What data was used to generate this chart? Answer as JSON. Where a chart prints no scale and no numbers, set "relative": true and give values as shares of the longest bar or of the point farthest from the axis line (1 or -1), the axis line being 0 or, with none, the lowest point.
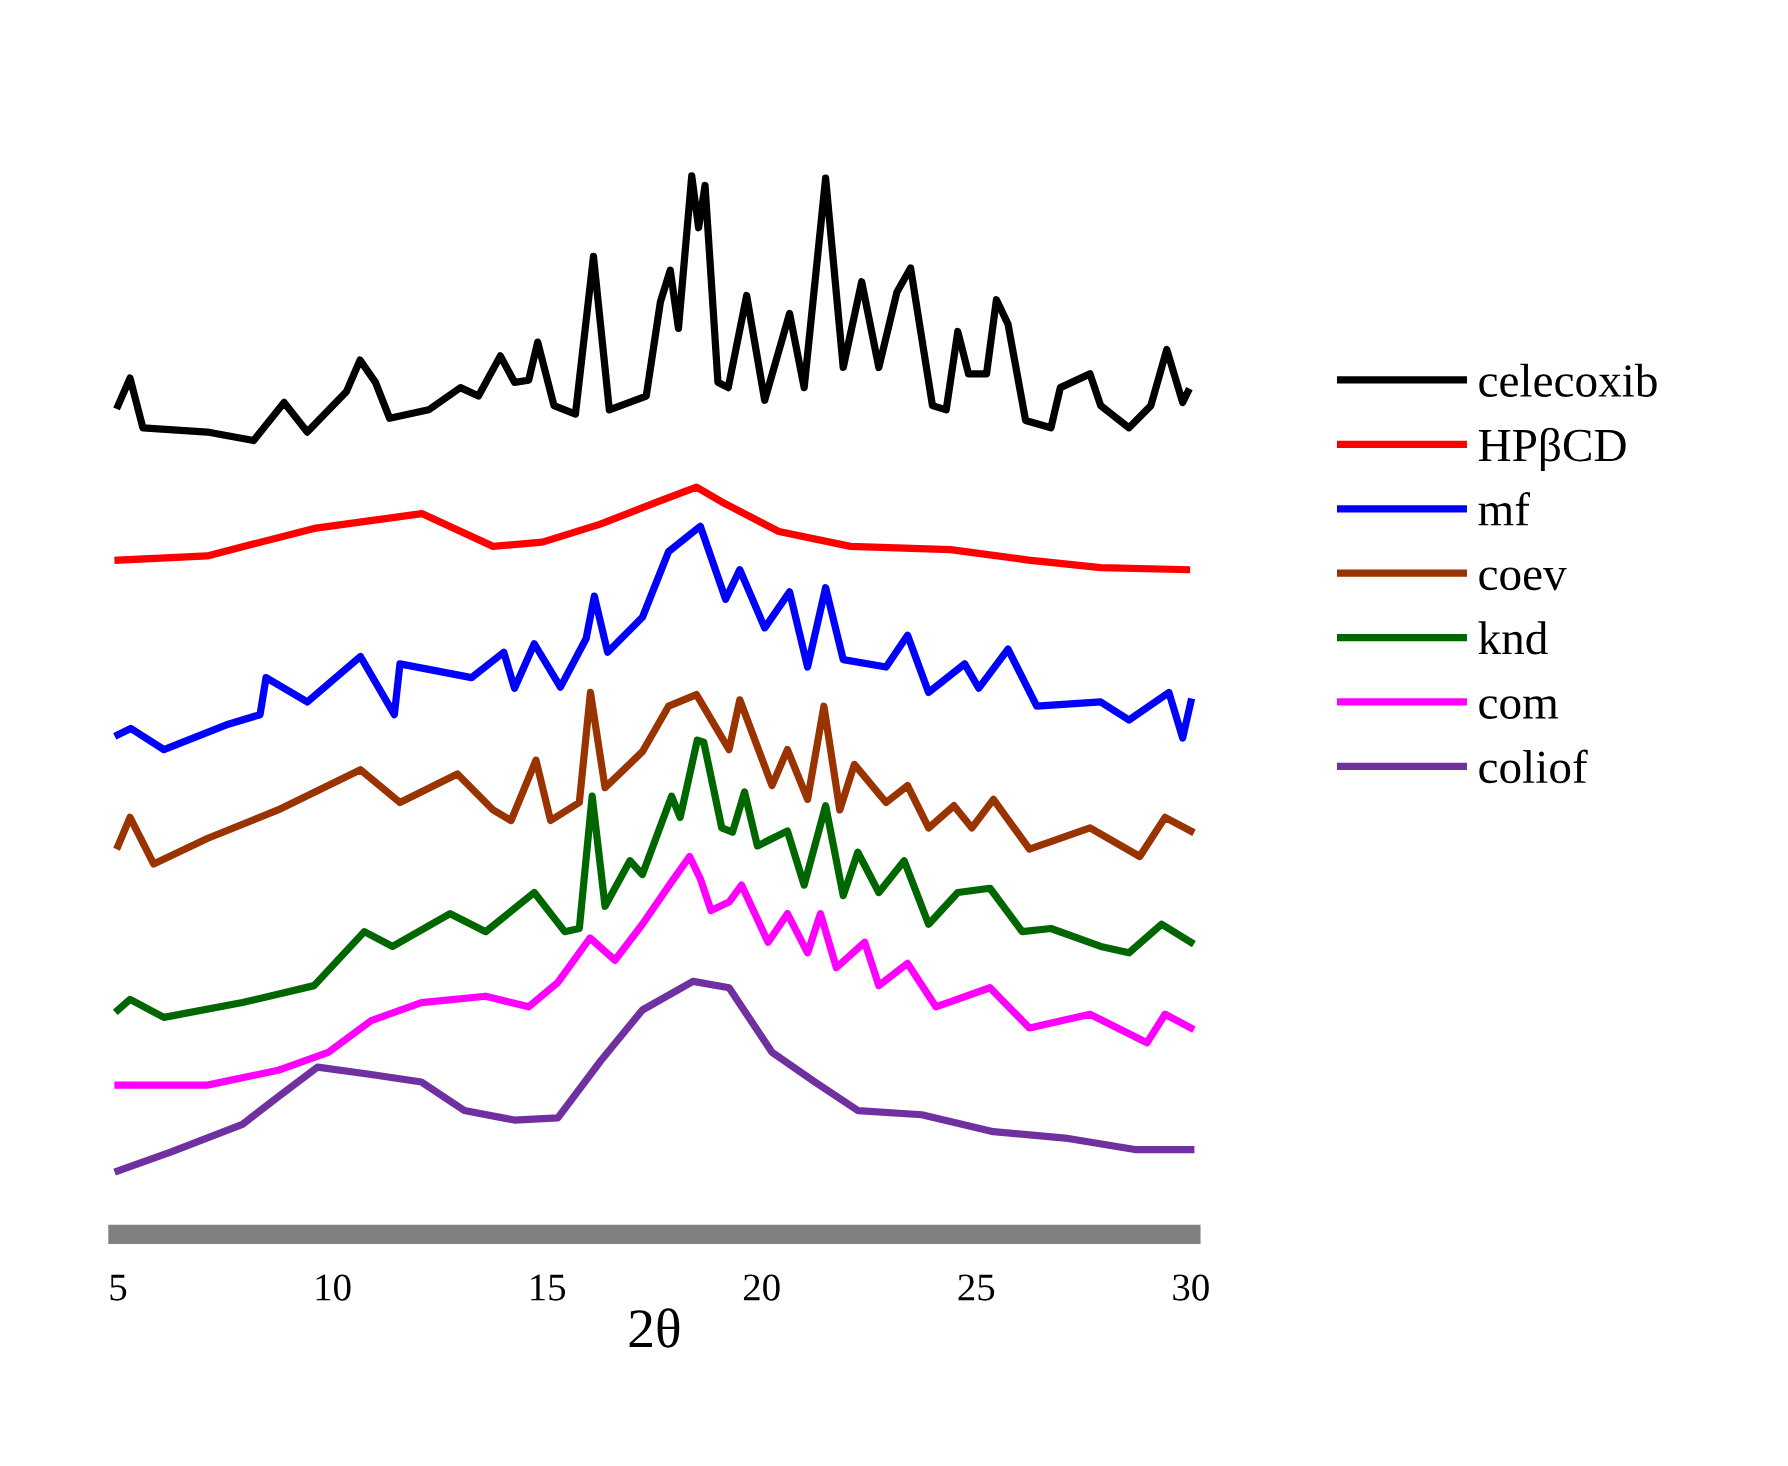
{
  "chart_data": {
    "type": "line",
    "relative": true,
    "xlabel": "2θ",
    "xlim": [
      5,
      30
    ],
    "xticks": [
      5,
      10,
      15,
      20,
      25,
      30
    ],
    "legend": "right",
    "grid": false,
    "marker": "none",
    "line_style": "solid",
    "series": [
      {
        "name": "celecoxib",
        "color": "#000000",
        "x": [
          5.0,
          5.28,
          5.58,
          7.08,
          8.16,
          8.87,
          9.41,
          10.32,
          10.64,
          11.0,
          11.33,
          12.24,
          12.98,
          13.4,
          13.91,
          14.24,
          14.57,
          14.78,
          15.16,
          15.66,
          16.08,
          16.45,
          17.31,
          17.64,
          17.87,
          18.06,
          18.37,
          18.53,
          18.68,
          18.98,
          19.22,
          19.65,
          20.07,
          20.65,
          20.99,
          21.49,
          21.9,
          22.33,
          22.73,
          23.15,
          23.47,
          23.98,
          24.3,
          24.57,
          24.82,
          25.24,
          25.47,
          25.74,
          26.15,
          26.74,
          26.96,
          27.65,
          27.9,
          28.56,
          29.07,
          29.44,
          29.81,
          29.93
        ],
        "values": [
          0.783,
          0.809,
          0.762,
          0.758,
          0.75,
          0.786,
          0.758,
          0.796,
          0.826,
          0.805,
          0.771,
          0.779,
          0.8,
          0.792,
          0.83,
          0.805,
          0.807,
          0.843,
          0.783,
          0.775,
          0.924,
          0.779,
          0.792,
          0.881,
          0.911,
          0.856,
          1.0,
          0.951,
          0.991,
          0.805,
          0.8,
          0.887,
          0.788,
          0.87,
          0.8,
          0.998,
          0.819,
          0.9,
          0.819,
          0.89,
          0.913,
          0.783,
          0.779,
          0.853,
          0.813,
          0.813,
          0.883,
          0.86,
          0.769,
          0.762,
          0.8,
          0.813,
          0.783,
          0.762,
          0.783,
          0.836,
          0.786,
          0.796
        ]
      },
      {
        "name": "HPβCD",
        "color": "#ff0000",
        "x": [
          5.0,
          7.08,
          9.57,
          12.08,
          13.74,
          14.89,
          16.24,
          17.57,
          18.48,
          19.07,
          20.4,
          22.07,
          24.4,
          26.22,
          27.9,
          29.9
        ],
        "values": [
          0.637,
          0.641,
          0.667,
          0.681,
          0.65,
          0.654,
          0.671,
          0.692,
          0.706,
          0.692,
          0.664,
          0.65,
          0.647,
          0.637,
          0.63,
          0.628
        ]
      },
      {
        "name": "mf",
        "color": "#0000ff",
        "x": [
          5.0,
          5.3,
          6.07,
          7.57,
          8.31,
          8.45,
          9.41,
          10.65,
          11.44,
          11.57,
          13.24,
          13.99,
          14.24,
          14.7,
          15.31,
          15.91,
          16.1,
          16.41,
          17.22,
          17.83,
          18.57,
          19.16,
          19.49,
          20.07,
          20.65,
          21.07,
          21.49,
          21.9,
          22.9,
          23.4,
          23.89,
          24.73,
          25.06,
          25.74,
          26.41,
          27.9,
          28.56,
          29.49,
          29.81,
          30.0
        ],
        "values": [
          0.472,
          0.478,
          0.458,
          0.482,
          0.491,
          0.526,
          0.503,
          0.546,
          0.491,
          0.539,
          0.526,
          0.55,
          0.516,
          0.558,
          0.517,
          0.563,
          0.603,
          0.55,
          0.583,
          0.645,
          0.669,
          0.6,
          0.628,
          0.573,
          0.607,
          0.536,
          0.611,
          0.543,
          0.536,
          0.566,
          0.512,
          0.539,
          0.516,
          0.553,
          0.499,
          0.503,
          0.486,
          0.512,
          0.469,
          0.503
        ]
      },
      {
        "name": "coev",
        "color": "#993300",
        "x": [
          5.0,
          5.28,
          5.83,
          7.08,
          8.73,
          10.65,
          11.57,
          12.91,
          13.74,
          14.16,
          14.74,
          15.08,
          15.75,
          16.01,
          16.35,
          17.22,
          17.83,
          18.48,
          19.24,
          19.49,
          20.24,
          20.6,
          21.07,
          21.45,
          21.82,
          22.16,
          22.9,
          23.4,
          23.89,
          24.48,
          24.9,
          25.4,
          26.24,
          27.65,
          28.81,
          29.4,
          30.0
        ],
        "values": [
          0.367,
          0.394,
          0.35,
          0.374,
          0.401,
          0.439,
          0.408,
          0.435,
          0.401,
          0.391,
          0.448,
          0.391,
          0.408,
          0.512,
          0.422,
          0.456,
          0.499,
          0.51,
          0.458,
          0.505,
          0.424,
          0.458,
          0.411,
          0.499,
          0.401,
          0.444,
          0.408,
          0.424,
          0.384,
          0.405,
          0.384,
          0.411,
          0.364,
          0.384,
          0.357,
          0.394,
          0.381
        ]
      },
      {
        "name": "knd",
        "color": "#006600",
        "x": [
          5.0,
          5.28,
          6.07,
          7.9,
          9.57,
          10.74,
          11.4,
          12.74,
          13.57,
          14.7,
          15.41,
          15.75,
          16.05,
          16.35,
          16.93,
          17.22,
          17.9,
          18.1,
          18.5,
          18.65,
          19.07,
          19.32,
          19.6,
          19.9,
          20.6,
          20.99,
          21.49,
          21.9,
          22.24,
          22.73,
          23.32,
          23.89,
          24.57,
          25.32,
          26.07,
          26.74,
          27.9,
          28.56,
          29.32,
          30.0
        ],
        "values": [
          0.212,
          0.222,
          0.205,
          0.219,
          0.235,
          0.286,
          0.272,
          0.303,
          0.286,
          0.323,
          0.286,
          0.289,
          0.414,
          0.31,
          0.353,
          0.34,
          0.414,
          0.394,
          0.467,
          0.465,
          0.384,
          0.38,
          0.418,
          0.367,
          0.381,
          0.33,
          0.405,
          0.32,
          0.361,
          0.323,
          0.353,
          0.293,
          0.323,
          0.327,
          0.286,
          0.289,
          0.272,
          0.266,
          0.293,
          0.276
        ]
      },
      {
        "name": "com",
        "color": "#ff00ff",
        "x": [
          5.0,
          7.08,
          8.73,
          9.9,
          10.9,
          12.07,
          13.57,
          14.57,
          15.25,
          16.0,
          16.58,
          17.22,
          17.9,
          18.32,
          18.57,
          18.82,
          19.24,
          19.53,
          20.15,
          20.6,
          21.07,
          21.37,
          21.74,
          22.4,
          22.73,
          23.4,
          24.06,
          25.32,
          26.24,
          27.65,
          28.98,
          29.4,
          30.0
        ],
        "values": [
          0.141,
          0.141,
          0.155,
          0.172,
          0.202,
          0.219,
          0.225,
          0.215,
          0.238,
          0.28,
          0.259,
          0.293,
          0.333,
          0.357,
          0.336,
          0.306,
          0.314,
          0.33,
          0.276,
          0.303,
          0.266,
          0.303,
          0.252,
          0.276,
          0.235,
          0.256,
          0.215,
          0.233,
          0.195,
          0.208,
          0.181,
          0.208,
          0.195
        ]
      },
      {
        "name": "coliof",
        "color": "#7030a0",
        "x": [
          5.0,
          6.24,
          7.9,
          8.73,
          9.65,
          10.9,
          12.07,
          13.07,
          14.24,
          15.25,
          16.25,
          17.22,
          18.4,
          19.24,
          20.24,
          21.24,
          22.24,
          23.73,
          25.4,
          27.07,
          28.73,
          30.0
        ],
        "values": [
          0.06,
          0.078,
          0.104,
          0.13,
          0.158,
          0.151,
          0.144,
          0.117,
          0.108,
          0.11,
          0.164,
          0.212,
          0.239,
          0.233,
          0.172,
          0.144,
          0.117,
          0.113,
          0.097,
          0.091,
          0.08,
          0.08
        ]
      }
    ]
  }
}
